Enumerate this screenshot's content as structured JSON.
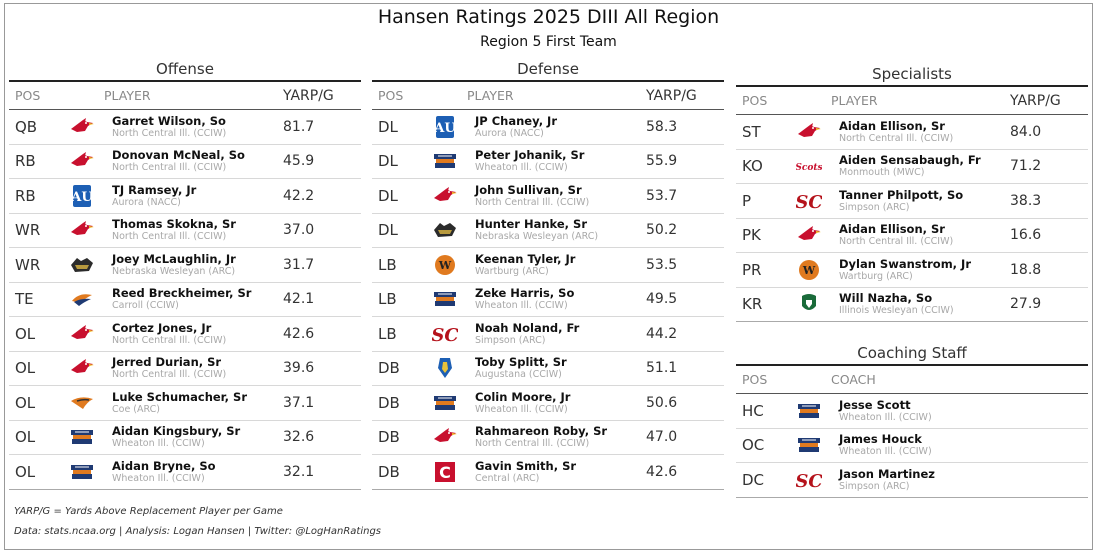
{
  "title": "Hansen Ratings 2025 DIII All Region",
  "subtitle": "Region 5 First Team",
  "headers": {
    "pos": "POS",
    "player": "PLAYER",
    "yarp": "YARP/G",
    "coach": "COACH"
  },
  "offense": {
    "title": "Offense",
    "rows": [
      {
        "pos": "QB",
        "name": "Garret Wilson, So",
        "team": "North Central Ill. (CCIW)",
        "val": "81.7",
        "logo": "cardinal-icon"
      },
      {
        "pos": "RB",
        "name": "Donovan McNeal, So",
        "team": "North Central Ill. (CCIW)",
        "val": "45.9",
        "logo": "cardinal-icon"
      },
      {
        "pos": "RB",
        "name": "TJ Ramsey, Jr",
        "team": "Aurora (NACC)",
        "val": "42.2",
        "logo": "aurora-logo-icon"
      },
      {
        "pos": "WR",
        "name": "Thomas Skokna, Sr",
        "team": "North Central Ill. (CCIW)",
        "val": "37.0",
        "logo": "cardinal-icon"
      },
      {
        "pos": "WR",
        "name": "Joey McLaughlin, Jr",
        "team": "Nebraska Wesleyan (ARC)",
        "val": "31.7",
        "logo": "prairie-wolf-icon"
      },
      {
        "pos": "TE",
        "name": "Reed Breckheimer, Sr",
        "team": "Carroll (CCIW)",
        "val": "42.1",
        "logo": "pioneer-icon"
      },
      {
        "pos": "OL",
        "name": "Cortez Jones, Jr",
        "team": "North Central Ill. (CCIW)",
        "val": "42.6",
        "logo": "cardinal-icon"
      },
      {
        "pos": "OL",
        "name": "Jerred Durian, Sr",
        "team": "North Central Ill. (CCIW)",
        "val": "39.6",
        "logo": "cardinal-icon"
      },
      {
        "pos": "OL",
        "name": "Luke Schumacher, Sr",
        "team": "Coe (ARC)",
        "val": "37.1",
        "logo": "kohawk-icon"
      },
      {
        "pos": "OL",
        "name": "Aidan Kingsbury, Sr",
        "team": "Wheaton Ill. (CCIW)",
        "val": "32.6",
        "logo": "thunder-icon"
      },
      {
        "pos": "OL",
        "name": "Aidan Bryne, So",
        "team": "Wheaton Ill. (CCIW)",
        "val": "32.1",
        "logo": "thunder-icon"
      }
    ]
  },
  "defense": {
    "title": "Defense",
    "rows": [
      {
        "pos": "DL",
        "name": "JP Chaney, Jr",
        "team": "Aurora (NACC)",
        "val": "58.3",
        "logo": "aurora-logo-icon"
      },
      {
        "pos": "DL",
        "name": "Peter Johanik, Sr",
        "team": "Wheaton Ill. (CCIW)",
        "val": "55.9",
        "logo": "thunder-icon"
      },
      {
        "pos": "DL",
        "name": "John Sullivan, Sr",
        "team": "North Central Ill. (CCIW)",
        "val": "53.7",
        "logo": "cardinal-icon"
      },
      {
        "pos": "DL",
        "name": "Hunter Hanke, Sr",
        "team": "Nebraska Wesleyan (ARC)",
        "val": "50.2",
        "logo": "prairie-wolf-icon"
      },
      {
        "pos": "LB",
        "name": "Keenan Tyler, Jr",
        "team": "Wartburg (ARC)",
        "val": "53.5",
        "logo": "wartburg-icon"
      },
      {
        "pos": "LB",
        "name": "Zeke Harris, So",
        "team": "Wheaton Ill. (CCIW)",
        "val": "49.5",
        "logo": "thunder-icon"
      },
      {
        "pos": "LB",
        "name": "Noah Noland, Fr",
        "team": "Simpson (ARC)",
        "val": "44.2",
        "logo": "simpson-sc-icon"
      },
      {
        "pos": "DB",
        "name": "Toby Splitt, Sr",
        "team": "Augustana (CCIW)",
        "val": "51.1",
        "logo": "augustana-icon"
      },
      {
        "pos": "DB",
        "name": "Colin Moore, Jr",
        "team": "Wheaton Ill. (CCIW)",
        "val": "50.6",
        "logo": "thunder-icon"
      },
      {
        "pos": "DB",
        "name": "Rahmareon Roby, Sr",
        "team": "North Central Ill. (CCIW)",
        "val": "47.0",
        "logo": "cardinal-icon"
      },
      {
        "pos": "DB",
        "name": "Gavin Smith, Sr",
        "team": "Central (ARC)",
        "val": "42.6",
        "logo": "central-c-icon"
      }
    ]
  },
  "specialists": {
    "title": "Specialists",
    "rows": [
      {
        "pos": "ST",
        "name": "Aidan Ellison, Sr",
        "team": "North Central Ill. (CCIW)",
        "val": "84.0",
        "logo": "cardinal-icon"
      },
      {
        "pos": "KO",
        "name": "Aiden Sensabaugh, Fr",
        "team": "Monmouth (MWC)",
        "val": "71.2",
        "logo": "monmouth-scots-icon"
      },
      {
        "pos": "P",
        "name": "Tanner Philpott, So",
        "team": "Simpson (ARC)",
        "val": "38.3",
        "logo": "simpson-sc-icon"
      },
      {
        "pos": "PK",
        "name": "Aidan Ellison, Sr",
        "team": "North Central Ill. (CCIW)",
        "val": "16.6",
        "logo": "cardinal-icon"
      },
      {
        "pos": "PR",
        "name": "Dylan Swanstrom, Jr",
        "team": "Wartburg (ARC)",
        "val": "18.8",
        "logo": "wartburg-icon"
      },
      {
        "pos": "KR",
        "name": "Will Nazha, So",
        "team": "Illinois Wesleyan (CCIW)",
        "val": "27.9",
        "logo": "titan-icon"
      }
    ]
  },
  "coaching": {
    "title": "Coaching Staff",
    "rows": [
      {
        "pos": "HC",
        "name": "Jesse Scott",
        "team": "Wheaton Ill. (CCIW)",
        "logo": "thunder-icon"
      },
      {
        "pos": "OC",
        "name": "James Houck",
        "team": "Wheaton Ill. (CCIW)",
        "logo": "thunder-icon"
      },
      {
        "pos": "DC",
        "name": "Jason Martinez",
        "team": "Simpson (ARC)",
        "logo": "simpson-sc-icon"
      }
    ]
  },
  "footnote": "YARP/G = Yards Above Replacement Player per Game",
  "credits": "Data: stats.ncaa.org | Analysis: Logan Hansen | Twitter: @LogHanRatings",
  "colors": {
    "cardinal": "#c8102e",
    "wheaton_blue": "#1f3a73",
    "wheaton_orange": "#e07a1f",
    "aurora_blue": "#1d5fb4",
    "gold": "#b89a3e",
    "simpson_red": "#b5121b",
    "central_red": "#c8102e",
    "green": "#1a6b3a"
  }
}
